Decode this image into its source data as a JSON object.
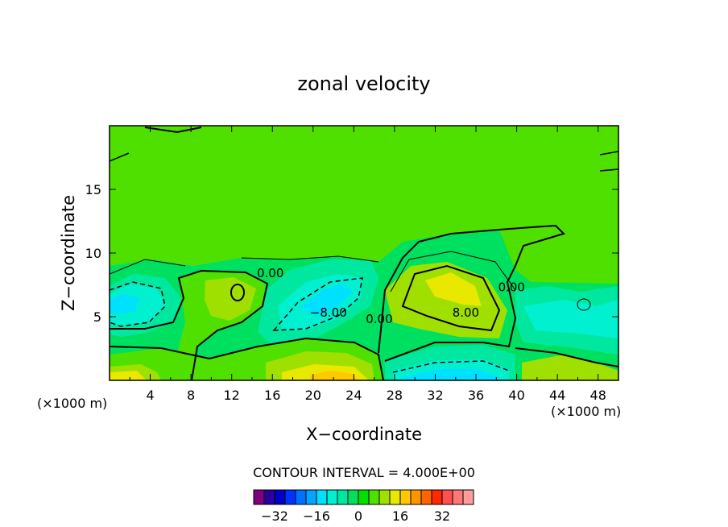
{
  "chart_data": {
    "type": "heatmap",
    "title": "zonal velocity",
    "xlabel": "X−coordinate",
    "ylabel": "Z−coordinate",
    "x_unit_left": "(×1000 m)",
    "x_unit_right": "(×1000 m)",
    "xlim": [
      0,
      50
    ],
    "ylim": [
      0,
      20
    ],
    "x_ticks": [
      4,
      8,
      12,
      16,
      20,
      24,
      28,
      32,
      36,
      40,
      44,
      48
    ],
    "x_tick_labels": [
      "4",
      "8",
      "12",
      "16",
      "20",
      "24",
      "28",
      "32",
      "36",
      "40",
      "44",
      "48"
    ],
    "y_ticks": [
      5,
      10,
      15
    ],
    "y_tick_labels": [
      "5",
      "10",
      "15"
    ],
    "grid": false,
    "contour_interval_text": "CONTOUR INTERVAL = 4.000E+00",
    "contour_labels": [
      {
        "text": "0.00",
        "x": 15.8,
        "z": 8.1
      },
      {
        "text": "−8.00",
        "x": 21.5,
        "z": 5.0
      },
      {
        "text": "0.00",
        "x": 26.5,
        "z": 4.5
      },
      {
        "text": "8.00",
        "x": 35.0,
        "z": 5.0
      },
      {
        "text": "0.00",
        "x": 39.5,
        "z": 7.0
      }
    ],
    "colorbar": {
      "colors": [
        "#800080",
        "#2a00a0",
        "#0000c8",
        "#0032ff",
        "#0070ff",
        "#00a6ff",
        "#00e0ff",
        "#00f0d0",
        "#00e8a0",
        "#00e060",
        "#00e000",
        "#50e000",
        "#a0e000",
        "#e8e800",
        "#ffc800",
        "#ff9600",
        "#ff6400",
        "#ff2800",
        "#ff5050",
        "#ff7878",
        "#ff9c9c"
      ],
      "tick_values": [
        -32,
        -16,
        0,
        16,
        32
      ],
      "tick_labels": [
        "−32",
        "−16",
        "0",
        "16",
        "32"
      ],
      "range": [
        -40,
        44
      ]
    }
  }
}
